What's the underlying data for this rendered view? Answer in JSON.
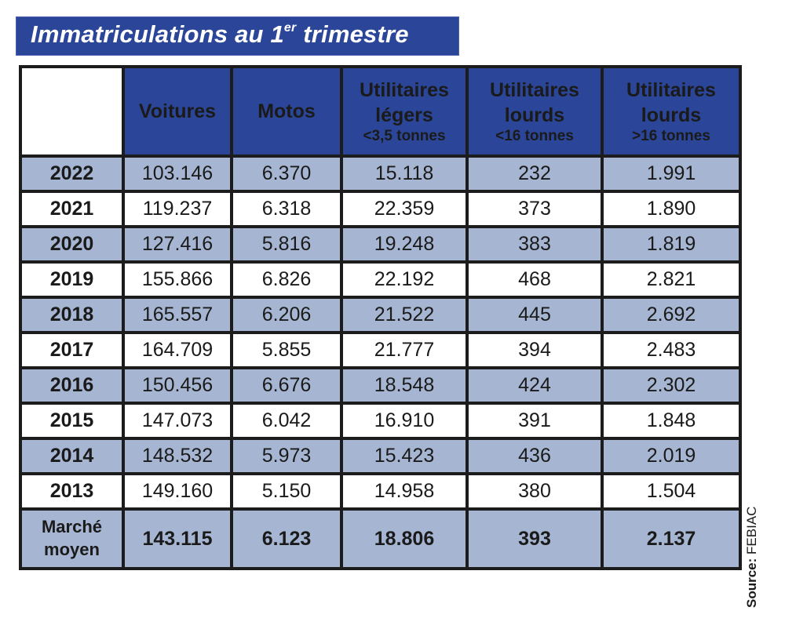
{
  "title": {
    "main": "Immatriculations au 1",
    "superscript": "er",
    "rest": " trimestre"
  },
  "colors": {
    "header_blue": "#2b4698",
    "row_shade": "#a6b6d2",
    "border": "#1c1c1c"
  },
  "table": {
    "columns": [
      {
        "label": "",
        "sub": ""
      },
      {
        "label": "Voitures",
        "sub": ""
      },
      {
        "label": "Motos",
        "sub": ""
      },
      {
        "label": "Utilitaires légers",
        "line1": "Utilitaires",
        "line2": "légers",
        "sub": "<3,5 tonnes"
      },
      {
        "label": "Utilitaires lourds",
        "line1": "Utilitaires",
        "line2": "lourds",
        "sub": "<16 tonnes"
      },
      {
        "label": "Utilitaires lourds",
        "line1": "Utilitaires",
        "line2": "lourds",
        "sub": ">16 tonnes"
      }
    ],
    "rows": [
      {
        "year": "2022",
        "values": [
          "103.146",
          "6.370",
          "15.118",
          "232",
          "1.991"
        ]
      },
      {
        "year": "2021",
        "values": [
          "119.237",
          "6.318",
          "22.359",
          "373",
          "1.890"
        ]
      },
      {
        "year": "2020",
        "values": [
          "127.416",
          "5.816",
          "19.248",
          "383",
          "1.819"
        ]
      },
      {
        "year": "2019",
        "values": [
          "155.866",
          "6.826",
          "22.192",
          "468",
          "2.821"
        ]
      },
      {
        "year": "2018",
        "values": [
          "165.557",
          "6.206",
          "21.522",
          "445",
          "2.692"
        ]
      },
      {
        "year": "2017",
        "values": [
          "164.709",
          "5.855",
          "21.777",
          "394",
          "2.483"
        ]
      },
      {
        "year": "2016",
        "values": [
          "150.456",
          "6.676",
          "18.548",
          "424",
          "2.302"
        ]
      },
      {
        "year": "2015",
        "values": [
          "147.073",
          "6.042",
          "16.910",
          "391",
          "1.848"
        ]
      },
      {
        "year": "2014",
        "values": [
          "148.532",
          "5.973",
          "15.423",
          "436",
          "2.019"
        ]
      },
      {
        "year": "2013",
        "values": [
          "149.160",
          "5.150",
          "14.958",
          "380",
          "1.504"
        ]
      }
    ],
    "average": {
      "label_line1": "Marché",
      "label_line2": "moyen",
      "values": [
        "143.115",
        "6.123",
        "18.806",
        "393",
        "2.137"
      ]
    }
  },
  "source": {
    "label": "Source:",
    "value": "FEBIAC"
  }
}
